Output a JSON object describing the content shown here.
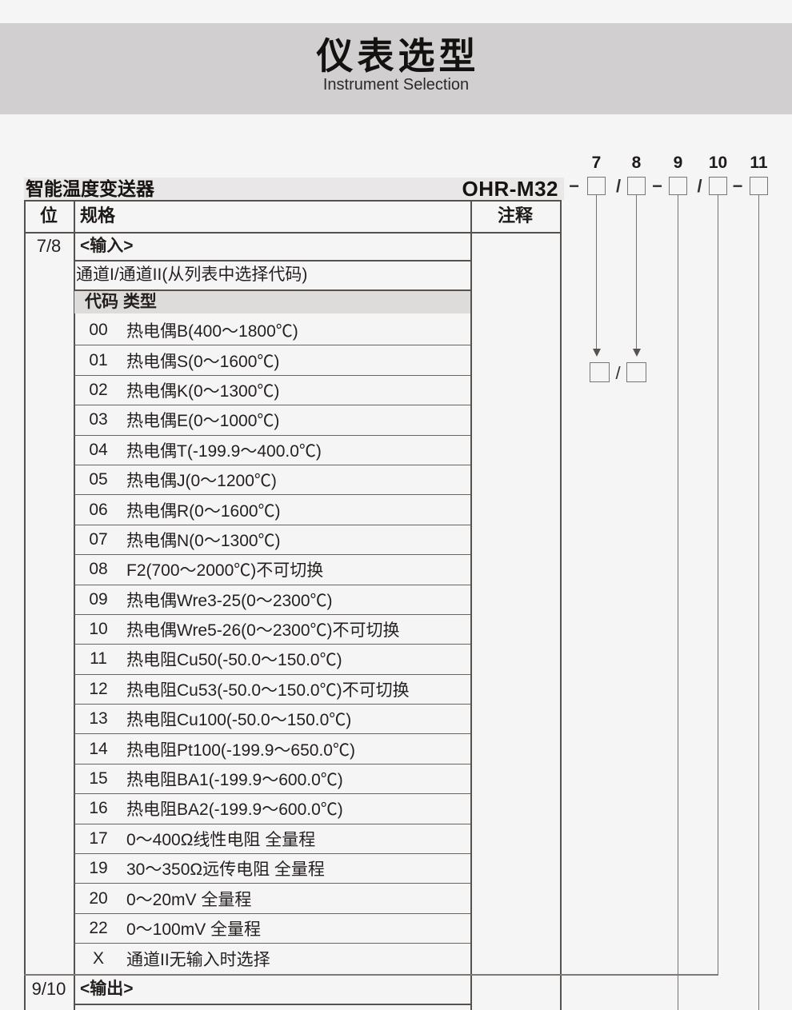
{
  "banner": {
    "title": "仪表选型",
    "subtitle": "Instrument Selection"
  },
  "product": {
    "name": "智能温度变送器",
    "model": "OHR-M32"
  },
  "diagram": {
    "positions": [
      "7",
      "8",
      "9",
      "10",
      "11"
    ],
    "tokens": [
      "−",
      "/",
      "−",
      "/",
      "−"
    ],
    "lower_slash": "/"
  },
  "table": {
    "headers": {
      "position": "位",
      "spec": "规格",
      "note": "注释"
    },
    "input_section": {
      "position": "7/8",
      "title": "<输入>",
      "subtitle": "通道I/通道II(从列表中选择代码)",
      "code_header": "代码 类型",
      "codes": [
        {
          "code": "00",
          "type": "热电偶B(400～1800℃)"
        },
        {
          "code": "01",
          "type": "热电偶S(0～1600℃)"
        },
        {
          "code": "02",
          "type": "热电偶K(0～1300℃)"
        },
        {
          "code": "03",
          "type": "热电偶E(0～1000℃)"
        },
        {
          "code": "04",
          "type": "热电偶T(-199.9～400.0℃)"
        },
        {
          "code": "05",
          "type": "热电偶J(0～1200℃)"
        },
        {
          "code": "06",
          "type": "热电偶R(0～1600℃)"
        },
        {
          "code": "07",
          "type": "热电偶N(0～1300℃)"
        },
        {
          "code": "08",
          "type": "F2(700～2000℃)不可切换"
        },
        {
          "code": "09",
          "type": "热电偶Wre3-25(0～2300℃)"
        },
        {
          "code": "10",
          "type": "热电偶Wre5-26(0～2300℃)不可切换"
        },
        {
          "code": "11",
          "type": "热电阻Cu50(-50.0～150.0℃)"
        },
        {
          "code": "12",
          "type": "热电阻Cu53(-50.0～150.0℃)不可切换"
        },
        {
          "code": "13",
          "type": "热电阻Cu100(-50.0～150.0℃)"
        },
        {
          "code": "14",
          "type": "热电阻Pt100(-199.9～650.0℃)"
        },
        {
          "code": "15",
          "type": "热电阻BA1(-199.9～600.0℃)"
        },
        {
          "code": "16",
          "type": "热电阻BA2(-199.9～600.0℃)"
        },
        {
          "code": "17",
          "type": "0～400Ω线性电阻 全量程"
        },
        {
          "code": "19",
          "type": "30～350Ω远传电阻 全量程"
        },
        {
          "code": "20",
          "type": "0～20mV 全量程"
        },
        {
          "code": "22",
          "type": "0～100mV 全量程"
        },
        {
          "code": "X",
          "type": "通道II无输入时选择"
        }
      ]
    },
    "output_section": {
      "position": "9/10",
      "title": "<输出>"
    }
  }
}
